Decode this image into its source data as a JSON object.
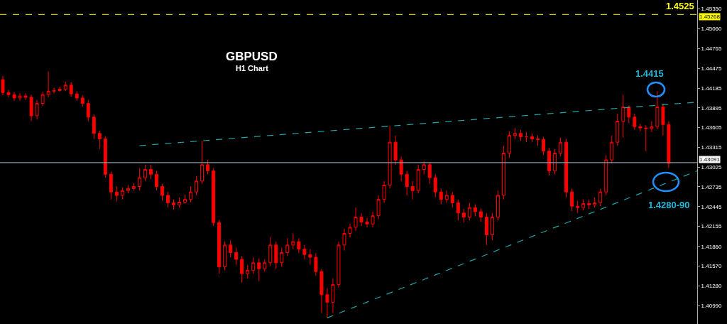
{
  "chart_data": {
    "type": "candlestick",
    "title": "GBPUSD",
    "subtitle": "H1 Chart",
    "categories": [
      null,
      null,
      null,
      null,
      null,
      null,
      null,
      null,
      null,
      null,
      null,
      null,
      null,
      null,
      null,
      null,
      null,
      null,
      null,
      null,
      null,
      null,
      null,
      null,
      null,
      null,
      null,
      null,
      null,
      null,
      null,
      null,
      null,
      null,
      null,
      null,
      null,
      null,
      null,
      null,
      null,
      null,
      null,
      null,
      null,
      null,
      null,
      null,
      null,
      null,
      null,
      null,
      null,
      null,
      null,
      null,
      null,
      null,
      null,
      null,
      null,
      null,
      null,
      null,
      null,
      null,
      null,
      null,
      null,
      null,
      null,
      null,
      null,
      null,
      null,
      null,
      null,
      null,
      null,
      null,
      null,
      null,
      null,
      null,
      null,
      null,
      null,
      null,
      null,
      null,
      null,
      null,
      null,
      null,
      null,
      null,
      null,
      null,
      null,
      null,
      null,
      null,
      null,
      null,
      null,
      null,
      null,
      null,
      null,
      null,
      null,
      null,
      null,
      null,
      null,
      null,
      null,
      null,
      null,
      null,
      null,
      null,
      null
    ],
    "color": "#ff0000",
    "ohlc": [
      [
        1.4431,
        1.4436,
        1.4408,
        1.4412
      ],
      [
        1.4412,
        1.4416,
        1.4405,
        1.4409
      ],
      [
        1.4409,
        1.4413,
        1.44,
        1.4404
      ],
      [
        1.4404,
        1.4411,
        1.44,
        1.4407
      ],
      [
        1.4407,
        1.4411,
        1.4401,
        1.4405
      ],
      [
        1.4405,
        1.4409,
        1.437,
        1.4378
      ],
      [
        1.4378,
        1.4401,
        1.4373,
        1.4396
      ],
      [
        1.4396,
        1.4413,
        1.4392,
        1.4409
      ],
      [
        1.4409,
        1.4443,
        1.4405,
        1.4414
      ],
      [
        1.4414,
        1.4419,
        1.4411,
        1.4415
      ],
      [
        1.4415,
        1.4421,
        1.4413,
        1.4417
      ],
      [
        1.4417,
        1.4428,
        1.4414,
        1.4423
      ],
      [
        1.4423,
        1.4427,
        1.4406,
        1.441
      ],
      [
        1.441,
        1.4414,
        1.44,
        1.4404
      ],
      [
        1.4404,
        1.4408,
        1.4391,
        1.4396
      ],
      [
        1.4396,
        1.4401,
        1.437,
        1.4376
      ],
      [
        1.4376,
        1.438,
        1.4344,
        1.4352
      ],
      [
        1.4352,
        1.4356,
        1.4329,
        1.4344
      ],
      [
        1.4344,
        1.4348,
        1.4287,
        1.4292
      ],
      [
        1.4292,
        1.4296,
        1.4255,
        1.4266
      ],
      [
        1.4266,
        1.4274,
        1.4252,
        1.4261
      ],
      [
        1.4261,
        1.4273,
        1.4255,
        1.4268
      ],
      [
        1.4268,
        1.4276,
        1.4264,
        1.4271
      ],
      [
        1.4271,
        1.4279,
        1.4268,
        1.4274
      ],
      [
        1.4274,
        1.4301,
        1.4268,
        1.4287
      ],
      [
        1.4287,
        1.4306,
        1.4282,
        1.4299
      ],
      [
        1.4299,
        1.4306,
        1.4285,
        1.4292
      ],
      [
        1.4292,
        1.4297,
        1.4268,
        1.4274
      ],
      [
        1.4274,
        1.4278,
        1.4253,
        1.4261
      ],
      [
        1.4261,
        1.4266,
        1.4243,
        1.425
      ],
      [
        1.425,
        1.4255,
        1.424,
        1.4247
      ],
      [
        1.4247,
        1.4258,
        1.4243,
        1.4251
      ],
      [
        1.4251,
        1.4262,
        1.4249,
        1.4255
      ],
      [
        1.4255,
        1.4274,
        1.4251,
        1.4266
      ],
      [
        1.4266,
        1.4289,
        1.4261,
        1.4282
      ],
      [
        1.4282,
        1.4341,
        1.4278,
        1.4306
      ],
      [
        1.4306,
        1.4313,
        1.4292,
        1.4297
      ],
      [
        1.4297,
        1.4301,
        1.4216,
        1.4221
      ],
      [
        1.4221,
        1.4225,
        1.4146,
        1.4156
      ],
      [
        1.4156,
        1.4193,
        1.4151,
        1.4188
      ],
      [
        1.4188,
        1.4195,
        1.417,
        1.4177
      ],
      [
        1.4177,
        1.4184,
        1.4159,
        1.4167
      ],
      [
        1.4167,
        1.4172,
        1.4133,
        1.4146
      ],
      [
        1.4146,
        1.4159,
        1.4139,
        1.4151
      ],
      [
        1.4151,
        1.417,
        1.4146,
        1.4162
      ],
      [
        1.4162,
        1.4168,
        1.4135,
        1.4153
      ],
      [
        1.4153,
        1.4167,
        1.4149,
        1.4162
      ],
      [
        1.4162,
        1.42,
        1.4157,
        1.4188
      ],
      [
        1.4188,
        1.4193,
        1.4153,
        1.4162
      ],
      [
        1.4162,
        1.4184,
        1.4156,
        1.4177
      ],
      [
        1.4177,
        1.4198,
        1.4172,
        1.4188
      ],
      [
        1.4188,
        1.4205,
        1.4182,
        1.4193
      ],
      [
        1.4193,
        1.4198,
        1.4176,
        1.4182
      ],
      [
        1.4182,
        1.4188,
        1.4167,
        1.4174
      ],
      [
        1.4174,
        1.4182,
        1.4159,
        1.417
      ],
      [
        1.417,
        1.4176,
        1.4143,
        1.4149
      ],
      [
        1.4149,
        1.4153,
        1.4088,
        1.4115
      ],
      [
        1.4115,
        1.4125,
        1.4081,
        1.4104
      ],
      [
        1.4104,
        1.4139,
        1.4088,
        1.413
      ],
      [
        1.413,
        1.4193,
        1.4125,
        1.4188
      ],
      [
        1.4188,
        1.4212,
        1.418,
        1.4205
      ],
      [
        1.4205,
        1.4219,
        1.4199,
        1.4214
      ],
      [
        1.4214,
        1.4243,
        1.4209,
        1.4229
      ],
      [
        1.4229,
        1.4235,
        1.4216,
        1.4222
      ],
      [
        1.4222,
        1.4228,
        1.4214,
        1.4219
      ],
      [
        1.4219,
        1.4237,
        1.4214,
        1.4231
      ],
      [
        1.4231,
        1.4261,
        1.4226,
        1.4255
      ],
      [
        1.4255,
        1.4282,
        1.425,
        1.4276
      ],
      [
        1.4276,
        1.4363,
        1.4271,
        1.4339
      ],
      [
        1.4339,
        1.4349,
        1.4306,
        1.4313
      ],
      [
        1.4313,
        1.4318,
        1.4282,
        1.4292
      ],
      [
        1.4292,
        1.4297,
        1.4261,
        1.4274
      ],
      [
        1.4274,
        1.4282,
        1.4255,
        1.4268
      ],
      [
        1.4268,
        1.4306,
        1.4264,
        1.4299
      ],
      [
        1.4299,
        1.4311,
        1.4292,
        1.4306
      ],
      [
        1.4306,
        1.431,
        1.4278,
        1.4287
      ],
      [
        1.4287,
        1.4292,
        1.4258,
        1.4266
      ],
      [
        1.4266,
        1.4271,
        1.4248,
        1.4255
      ],
      [
        1.4255,
        1.4268,
        1.425,
        1.4261
      ],
      [
        1.4261,
        1.4266,
        1.4243,
        1.425
      ],
      [
        1.425,
        1.4255,
        1.4224,
        1.4235
      ],
      [
        1.4235,
        1.4241,
        1.4221,
        1.4229
      ],
      [
        1.4229,
        1.425,
        1.4224,
        1.4243
      ],
      [
        1.4243,
        1.4248,
        1.423,
        1.4237
      ],
      [
        1.4237,
        1.4242,
        1.4222,
        1.4229
      ],
      [
        1.4229,
        1.4235,
        1.4188,
        1.4203
      ],
      [
        1.4203,
        1.4235,
        1.4195,
        1.4229
      ],
      [
        1.4229,
        1.4268,
        1.4224,
        1.4261
      ],
      [
        1.4261,
        1.4334,
        1.4255,
        1.4323
      ],
      [
        1.4323,
        1.4355,
        1.4316,
        1.4349
      ],
      [
        1.4349,
        1.436,
        1.4344,
        1.4352
      ],
      [
        1.4352,
        1.4357,
        1.4341,
        1.4347
      ],
      [
        1.4347,
        1.4354,
        1.4339,
        1.4347
      ],
      [
        1.4347,
        1.4352,
        1.4339,
        1.4344
      ],
      [
        1.4344,
        1.4349,
        1.4334,
        1.4343
      ],
      [
        1.4343,
        1.4347,
        1.432,
        1.4326
      ],
      [
        1.4326,
        1.4331,
        1.429,
        1.4297
      ],
      [
        1.4297,
        1.4329,
        1.4292,
        1.4323
      ],
      [
        1.4323,
        1.4346,
        1.4318,
        1.4339
      ],
      [
        1.4339,
        1.4344,
        1.4258,
        1.4266
      ],
      [
        1.4266,
        1.4271,
        1.4238,
        1.4245
      ],
      [
        1.4245,
        1.4253,
        1.4235,
        1.4243
      ],
      [
        1.4243,
        1.4255,
        1.4239,
        1.4249
      ],
      [
        1.4249,
        1.4255,
        1.4241,
        1.4247
      ],
      [
        1.4247,
        1.4258,
        1.4243,
        1.425
      ],
      [
        1.425,
        1.4271,
        1.4245,
        1.4266
      ],
      [
        1.4266,
        1.432,
        1.4261,
        1.4313
      ],
      [
        1.4313,
        1.4349,
        1.4308,
        1.4339
      ],
      [
        1.4339,
        1.4381,
        1.4334,
        1.437
      ],
      [
        1.437,
        1.4409,
        1.4346,
        1.4391
      ],
      [
        1.4391,
        1.4393,
        1.4367,
        1.4376
      ],
      [
        1.4376,
        1.4381,
        1.4357,
        1.4362
      ],
      [
        1.4362,
        1.4366,
        1.4355,
        1.436
      ],
      [
        1.436,
        1.4364,
        1.4326,
        1.4359
      ],
      [
        1.4359,
        1.437,
        1.4354,
        1.4362
      ],
      [
        1.4362,
        1.4414,
        1.4358,
        1.4391
      ],
      [
        1.4391,
        1.4396,
        1.4349,
        1.4365
      ],
      [
        1.4365,
        1.437,
        1.4301,
        1.4308
      ],
      null,
      null,
      null,
      null,
      null
    ],
    "series": [
      {
        "type": "line",
        "color": "#1fa5a5",
        "line_style": "dashed",
        "values": [
          null,
          null,
          null,
          null,
          null,
          null,
          null,
          null,
          null,
          null,
          null,
          null,
          null,
          null,
          null,
          null,
          null,
          null,
          null,
          null,
          null,
          null,
          null,
          null,
          1.4334,
          null,
          null,
          null,
          null,
          null,
          null,
          null,
          null,
          null,
          null,
          null,
          null,
          null,
          null,
          null,
          null,
          null,
          null,
          null,
          null,
          null,
          null,
          null,
          null,
          null,
          null,
          null,
          null,
          null,
          null,
          null,
          null,
          null,
          null,
          null,
          null,
          null,
          null,
          null,
          null,
          null,
          null,
          null,
          null,
          null,
          null,
          null,
          null,
          null,
          null,
          null,
          null,
          null,
          null,
          null,
          null,
          null,
          null,
          null,
          null,
          null,
          null,
          null,
          null,
          null,
          null,
          null,
          null,
          null,
          null,
          null,
          null,
          null,
          null,
          null,
          null,
          null,
          null,
          null,
          null,
          null,
          null,
          null,
          null,
          null,
          null,
          null,
          null,
          null,
          null,
          null,
          null,
          null,
          null,
          null,
          null,
          null,
          1.4398
        ]
      },
      {
        "type": "line",
        "color": "#1fa5a5",
        "line_style": "dashed",
        "values": [
          null,
          null,
          null,
          null,
          null,
          null,
          null,
          null,
          null,
          null,
          null,
          null,
          null,
          null,
          null,
          null,
          null,
          null,
          null,
          null,
          null,
          null,
          null,
          null,
          null,
          null,
          null,
          null,
          null,
          null,
          null,
          null,
          null,
          null,
          null,
          null,
          null,
          null,
          null,
          null,
          null,
          null,
          null,
          null,
          null,
          null,
          null,
          null,
          null,
          null,
          null,
          null,
          null,
          null,
          null,
          null,
          null,
          1.4081,
          null,
          null,
          null,
          null,
          null,
          null,
          null,
          null,
          null,
          null,
          null,
          null,
          null,
          null,
          null,
          null,
          null,
          null,
          null,
          null,
          null,
          null,
          null,
          null,
          null,
          null,
          null,
          null,
          null,
          null,
          null,
          null,
          null,
          null,
          null,
          null,
          null,
          null,
          null,
          null,
          null,
          null,
          null,
          null,
          null,
          null,
          null,
          null,
          null,
          null,
          null,
          null,
          null,
          null,
          null,
          null,
          null,
          null,
          null,
          null,
          null,
          null,
          null,
          null,
          1.4297
        ]
      }
    ],
    "ylim": [
      1.4072,
      1.4548
    ],
    "yticks": [
      {
        "value": 1.4535,
        "label": "1.45350"
      },
      {
        "value": 1.4506,
        "label": "1.45060"
      },
      {
        "value": 1.44765,
        "label": "1.44765"
      },
      {
        "value": 1.44475,
        "label": "1.44475"
      },
      {
        "value": 1.44185,
        "label": "1.44185"
      },
      {
        "value": 1.43895,
        "label": "1.43895"
      },
      {
        "value": 1.43605,
        "label": "1.43605"
      },
      {
        "value": 1.43315,
        "label": "1.43315"
      },
      {
        "value": 1.43025,
        "label": "1.43025"
      },
      {
        "value": 1.42735,
        "label": "1.42735"
      },
      {
        "value": 1.42445,
        "label": "1.42445"
      },
      {
        "value": 1.42155,
        "label": "1.42155"
      },
      {
        "value": 1.4186,
        "label": "1.41860"
      },
      {
        "value": 1.4157,
        "label": "1.41570"
      },
      {
        "value": 1.4128,
        "label": "1.41280"
      },
      {
        "value": 1.4099,
        "label": "1.40990"
      }
    ],
    "ref_lines": [
      {
        "axis": "y",
        "value": 1.45268,
        "label": "1.45268",
        "color": "#c8c800",
        "line_style": "dashed"
      },
      {
        "axis": "y",
        "value": 1.43091,
        "label": "1.43091",
        "color": "#8899aa",
        "line_style": "solid"
      }
    ],
    "annotations": [
      "1.4525",
      "1.4415",
      "1.4280-90"
    ],
    "tick_labels": "y",
    "grid": false
  }
}
